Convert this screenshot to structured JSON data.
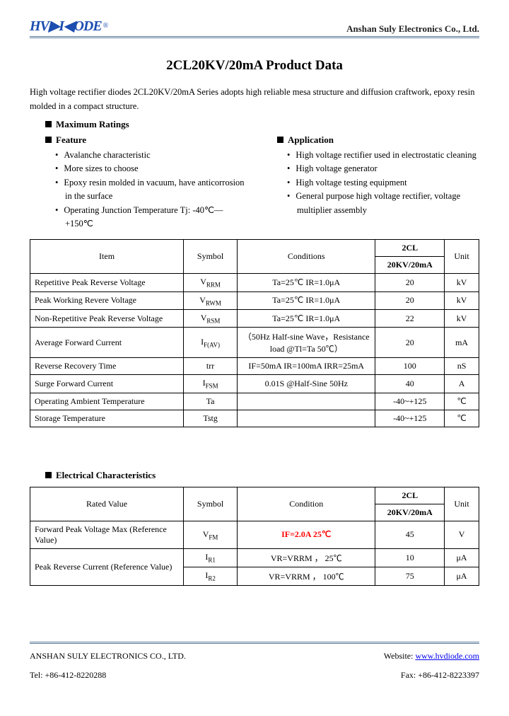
{
  "header": {
    "logo_text": "HV▶I◀ODE",
    "logo_reg": "®",
    "company": "Anshan Suly Electronics Co., Ltd."
  },
  "title": "2CL20KV/20mA    Product Data",
  "intro": "High voltage rectifier diodes 2CL20KV/20mA Series adopts high reliable mesa structure and diffusion craftwork, epoxy resin molded in a compact structure.",
  "max_ratings_h": "Maximum Ratings",
  "feature_h": "Feature",
  "features": [
    "Avalanche characteristic",
    "More sizes to choose",
    "Epoxy resin molded in vacuum, have anticorrosion in the surface",
    "Operating Junction Temperature Tj: -40℃—+150℃"
  ],
  "application_h": "Application",
  "applications": [
    "High voltage rectifier used in electrostatic cleaning",
    "High voltage generator",
    "High voltage testing equipment",
    "General purpose high voltage rectifier, voltage multiplier assembly"
  ],
  "table1": {
    "headers": {
      "item": "Item",
      "symbol": "Symbol",
      "conditions": "Conditions",
      "model_top": "2CL",
      "model_bot": "20KV/20mA",
      "unit": "Unit"
    },
    "rows": [
      {
        "item": "Repetitive Peak Reverse Voltage",
        "symbol_base": "V",
        "symbol_sub": "RRM",
        "cond": "Ta=25℃    IR=1.0μA",
        "val": "20",
        "unit": "kV"
      },
      {
        "item": "Peak Working Revere Voltage",
        "symbol_base": "V",
        "symbol_sub": "RWM",
        "cond": "Ta=25℃    IR=1.0μA",
        "val": "20",
        "unit": "kV"
      },
      {
        "item": "Non-Repetitive   Peak   Reverse Voltage",
        "symbol_base": "V",
        "symbol_sub": "RSM",
        "cond": "Ta=25℃    IR=1.0μA",
        "val": "22",
        "unit": "kV"
      },
      {
        "item": "Average Forward Current",
        "symbol_base": "I",
        "symbol_sub": "F(AV)",
        "cond": "（50Hz Half-sine Wave，Resistance load @Tl=Ta  50℃）",
        "val": "20",
        "unit": "mA"
      },
      {
        "item": "Reverse Recovery Time",
        "symbol_base": "trr",
        "symbol_sub": "",
        "cond": "IF=50mA   IR=100mA IRR=25mA",
        "val": "100",
        "unit": "nS"
      },
      {
        "item": "Surge Forward Current",
        "symbol_base": "I",
        "symbol_sub": "FSM",
        "cond": "0.01S    @Half-Sine       50Hz",
        "val": "40",
        "unit": "A"
      },
      {
        "item": "Operating Ambient Temperature",
        "symbol_base": "Ta",
        "symbol_sub": "",
        "cond": "",
        "val": "-40~+125",
        "unit": "℃"
      },
      {
        "item": "Storage Temperature",
        "symbol_base": "Tstg",
        "symbol_sub": "",
        "cond": "",
        "val": "-40~+125",
        "unit": "℃"
      }
    ]
  },
  "elec_h": "Electrical Characteristics",
  "table2": {
    "headers": {
      "rated": "Rated Value",
      "symbol": "Symbol",
      "condition": "Condition",
      "model_top": "2CL",
      "model_bot": "20KV/20mA",
      "unit": "Unit"
    },
    "rows": [
      {
        "rated": "Forward Peak Voltage Max (Reference Value)",
        "symbol_base": "V",
        "symbol_sub": "FM",
        "cond": "IF=2.0A 25℃",
        "cond_red": true,
        "val": "45",
        "unit": "V",
        "rowspan": 1
      },
      {
        "rated": "Peak Reverse Current (Reference Value)",
        "symbol_base": "I",
        "symbol_sub": "R1",
        "cond": "VR=VRRM ， 25℃",
        "val": "10",
        "unit": "μA"
      },
      {
        "rated": "",
        "symbol_base": "I",
        "symbol_sub": "R2",
        "cond": "VR=VRRM ， 100℃",
        "val": "75",
        "unit": "μA"
      }
    ]
  },
  "footer": {
    "company": "ANSHAN SULY ELECTRONICS CO., LTD.",
    "website_label": "Website:",
    "website_link": "www.hvdiode.com",
    "tel": "Tel: +86-412-8220288",
    "fax": "Fax: +86-412-8223397"
  },
  "colors": {
    "rule": "#5a7a9a",
    "logo": "#1c4db0",
    "link": "#0000ee",
    "highlight": "#ff0000",
    "text": "#000000",
    "bg": "#ffffff"
  }
}
